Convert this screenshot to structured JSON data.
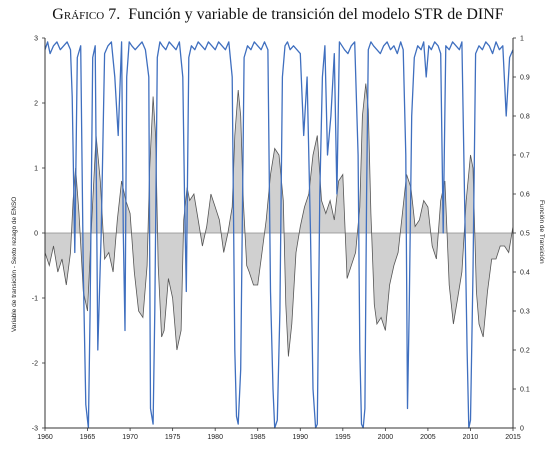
{
  "title": {
    "label": "Gráfico 7.",
    "text": "Función y variable de transición del modelo STR de DINF"
  },
  "chart_data": {
    "type": "line",
    "x_range": [
      1960,
      2015
    ],
    "x_ticks": [
      "1960",
      "1965",
      "1970",
      "1975",
      "1980",
      "1985",
      "1990",
      "1995",
      "2000",
      "2005",
      "2010",
      "2015"
    ],
    "left_axis": {
      "label": "Variable de transición - Sexto rezago de ENSO",
      "range": [
        -3,
        3
      ],
      "ticks": [
        "3",
        "2",
        "1",
        "0",
        "-1",
        "-2",
        "-3"
      ]
    },
    "right_axis": {
      "label": "Función de Transición",
      "range": [
        0,
        1
      ],
      "ticks": [
        "1",
        "0.9",
        "0.8",
        "0.7",
        "0.6",
        "0.5",
        "0.4",
        "0.3",
        "0.2",
        "0.1",
        "0"
      ]
    },
    "grid": false,
    "colors": {
      "transition_variable": "#555555",
      "fill": "#d0d0d0",
      "transition_function": "#3f6fbf"
    },
    "series": [
      {
        "axis": "left",
        "x": [
          1960.0,
          1960.5,
          1961.0,
          1961.5,
          1962.0,
          1962.5,
          1963.0,
          1963.3,
          1963.6,
          1964.0,
          1964.5,
          1965.0,
          1965.5,
          1966.0,
          1966.5,
          1967.0,
          1967.5,
          1968.0,
          1968.5,
          1969.0,
          1969.5,
          1970.0,
          1970.5,
          1971.0,
          1971.5,
          1972.0,
          1972.3,
          1972.7,
          1973.0,
          1973.3,
          1973.7,
          1974.0,
          1974.5,
          1975.0,
          1975.5,
          1976.0,
          1976.3,
          1976.7,
          1977.0,
          1977.5,
          1978.0,
          1978.5,
          1979.0,
          1979.5,
          1980.0,
          1980.5,
          1981.0,
          1981.5,
          1982.0,
          1982.3,
          1982.7,
          1983.0,
          1983.3,
          1983.7,
          1984.0,
          1984.5,
          1985.0,
          1985.5,
          1986.0,
          1986.5,
          1987.0,
          1987.5,
          1988.0,
          1988.3,
          1988.6,
          1989.0,
          1989.5,
          1990.0,
          1990.5,
          1991.0,
          1991.5,
          1992.0,
          1992.5,
          1993.0,
          1993.5,
          1994.0,
          1994.5,
          1995.0,
          1995.5,
          1996.0,
          1996.5,
          1997.0,
          1997.3,
          1997.7,
          1998.0,
          1998.3,
          1998.7,
          1999.0,
          1999.5,
          2000.0,
          2000.5,
          2001.0,
          2001.5,
          2002.0,
          2002.5,
          2003.0,
          2003.5,
          2004.0,
          2004.5,
          2005.0,
          2005.5,
          2006.0,
          2006.5,
          2007.0,
          2007.5,
          2008.0,
          2008.5,
          2009.0,
          2009.5,
          2010.0,
          2010.3,
          2010.7,
          2011.0,
          2011.5,
          2012.0,
          2012.5,
          2013.0,
          2013.5,
          2014.0,
          2014.5,
          2015.0
        ],
        "y": [
          -0.3,
          -0.5,
          -0.2,
          -0.6,
          -0.4,
          -0.8,
          -0.3,
          0.5,
          1.0,
          0.3,
          -0.9,
          -1.2,
          0.2,
          1.5,
          0.8,
          -0.4,
          -0.3,
          -0.6,
          0.2,
          0.8,
          0.5,
          0.3,
          -0.6,
          -1.2,
          -1.3,
          -0.5,
          1.0,
          2.1,
          1.5,
          -0.5,
          -1.6,
          -1.5,
          -0.7,
          -1.0,
          -1.8,
          -1.5,
          0.2,
          0.7,
          0.5,
          0.6,
          0.2,
          -0.2,
          0.1,
          0.6,
          0.4,
          0.2,
          -0.3,
          0.0,
          0.4,
          1.5,
          2.2,
          1.8,
          0.5,
          -0.5,
          -0.6,
          -0.8,
          -0.8,
          -0.3,
          0.2,
          0.9,
          1.3,
          1.2,
          0.5,
          -1.1,
          -1.9,
          -1.4,
          -0.3,
          0.1,
          0.4,
          0.6,
          1.2,
          1.5,
          0.5,
          0.3,
          0.5,
          0.2,
          0.8,
          0.9,
          -0.7,
          -0.5,
          -0.3,
          0.4,
          1.8,
          2.3,
          1.9,
          0.3,
          -1.1,
          -1.4,
          -1.3,
          -1.5,
          -0.8,
          -0.5,
          -0.3,
          0.3,
          0.9,
          0.7,
          0.1,
          0.2,
          0.5,
          0.4,
          -0.2,
          -0.4,
          0.5,
          0.8,
          -0.8,
          -1.4,
          -1.0,
          -0.6,
          0.5,
          1.2,
          1.0,
          -0.9,
          -1.4,
          -1.6,
          -0.9,
          -0.4,
          -0.4,
          -0.2,
          -0.2,
          -0.3,
          0.1
        ]
      },
      {
        "axis": "right",
        "x": [
          1960.0,
          1960.3,
          1960.6,
          1961.0,
          1961.4,
          1961.8,
          1962.2,
          1962.6,
          1963.0,
          1963.2,
          1963.5,
          1963.8,
          1964.2,
          1964.5,
          1964.8,
          1965.1,
          1965.3,
          1965.6,
          1965.9,
          1966.2,
          1966.6,
          1967.0,
          1967.4,
          1967.8,
          1968.2,
          1968.6,
          1969.0,
          1969.2,
          1969.4,
          1969.6,
          1969.9,
          1970.2,
          1970.6,
          1971.0,
          1971.4,
          1971.8,
          1972.2,
          1972.4,
          1972.7,
          1972.9,
          1973.2,
          1973.5,
          1973.8,
          1974.2,
          1974.6,
          1975.0,
          1975.4,
          1975.8,
          1976.2,
          1976.4,
          1976.6,
          1976.9,
          1977.2,
          1977.6,
          1978.0,
          1978.4,
          1978.8,
          1979.2,
          1979.6,
          1980.0,
          1980.4,
          1980.8,
          1981.2,
          1981.6,
          1982.0,
          1982.3,
          1982.5,
          1982.7,
          1983.0,
          1983.4,
          1983.8,
          1984.2,
          1984.6,
          1985.0,
          1985.4,
          1985.8,
          1986.2,
          1986.5,
          1986.8,
          1987.0,
          1987.3,
          1987.6,
          1987.9,
          1988.2,
          1988.5,
          1988.8,
          1989.2,
          1989.6,
          1990.0,
          1990.4,
          1990.8,
          1991.2,
          1991.5,
          1991.8,
          1992.0,
          1992.3,
          1992.6,
          1992.9,
          1993.2,
          1993.6,
          1994.0,
          1994.3,
          1994.6,
          1994.9,
          1995.2,
          1995.6,
          1996.0,
          1996.4,
          1996.8,
          1997.0,
          1997.2,
          1997.4,
          1997.6,
          1997.8,
          1998.0,
          1998.3,
          1998.6,
          1999.0,
          1999.4,
          1999.8,
          2000.2,
          2000.6,
          2001.0,
          2001.4,
          2001.8,
          2002.1,
          2002.4,
          2002.6,
          2002.8,
          2003.1,
          2003.4,
          2003.8,
          2004.2,
          2004.5,
          2004.8,
          2005.1,
          2005.4,
          2005.8,
          2006.2,
          2006.5,
          2006.8,
          2007.1,
          2007.5,
          2007.9,
          2008.3,
          2008.7,
          2009.0,
          2009.3,
          2009.6,
          2009.8,
          2010.0,
          2010.3,
          2010.6,
          2011.0,
          2011.4,
          2011.8,
          2012.2,
          2012.6,
          2013.0,
          2013.4,
          2013.8,
          2014.2,
          2014.6,
          2015.0
        ],
        "y": [
          0.97,
          0.99,
          0.96,
          0.98,
          0.99,
          0.97,
          0.98,
          0.99,
          0.97,
          0.85,
          0.45,
          0.95,
          0.98,
          0.4,
          0.06,
          0.0,
          0.3,
          0.95,
          0.98,
          0.2,
          0.5,
          0.96,
          0.98,
          0.99,
          0.9,
          0.75,
          0.99,
          0.5,
          0.25,
          0.9,
          0.99,
          0.98,
          0.97,
          0.98,
          0.99,
          0.97,
          0.9,
          0.05,
          0.01,
          0.3,
          0.95,
          0.99,
          0.98,
          0.97,
          0.99,
          0.98,
          0.97,
          0.99,
          0.9,
          0.6,
          0.35,
          0.95,
          0.98,
          0.97,
          0.99,
          0.98,
          0.97,
          0.99,
          0.98,
          0.97,
          0.99,
          0.98,
          0.97,
          0.99,
          0.9,
          0.2,
          0.03,
          0.01,
          0.15,
          0.95,
          0.98,
          0.97,
          0.99,
          0.98,
          0.97,
          0.99,
          0.97,
          0.35,
          0.1,
          0.0,
          0.02,
          0.3,
          0.9,
          0.98,
          0.99,
          0.97,
          0.98,
          0.97,
          0.96,
          0.75,
          0.9,
          0.5,
          0.1,
          0.0,
          0.01,
          0.6,
          0.9,
          0.98,
          0.7,
          0.8,
          0.96,
          0.6,
          0.99,
          0.98,
          0.97,
          0.96,
          0.98,
          0.99,
          0.7,
          0.2,
          0.01,
          0.0,
          0.05,
          0.6,
          0.97,
          0.99,
          0.98,
          0.97,
          0.96,
          0.98,
          0.99,
          0.97,
          0.98,
          0.96,
          0.99,
          0.97,
          0.7,
          0.05,
          0.3,
          0.8,
          0.95,
          0.98,
          0.97,
          0.99,
          0.9,
          0.98,
          0.97,
          0.99,
          0.98,
          0.96,
          0.5,
          0.98,
          0.97,
          0.99,
          0.98,
          0.97,
          0.99,
          0.6,
          0.2,
          0.0,
          0.02,
          0.4,
          0.96,
          0.98,
          0.97,
          0.99,
          0.98,
          0.96,
          0.99,
          0.97,
          0.98,
          0.8,
          0.95,
          0.97
        ]
      }
    ]
  }
}
